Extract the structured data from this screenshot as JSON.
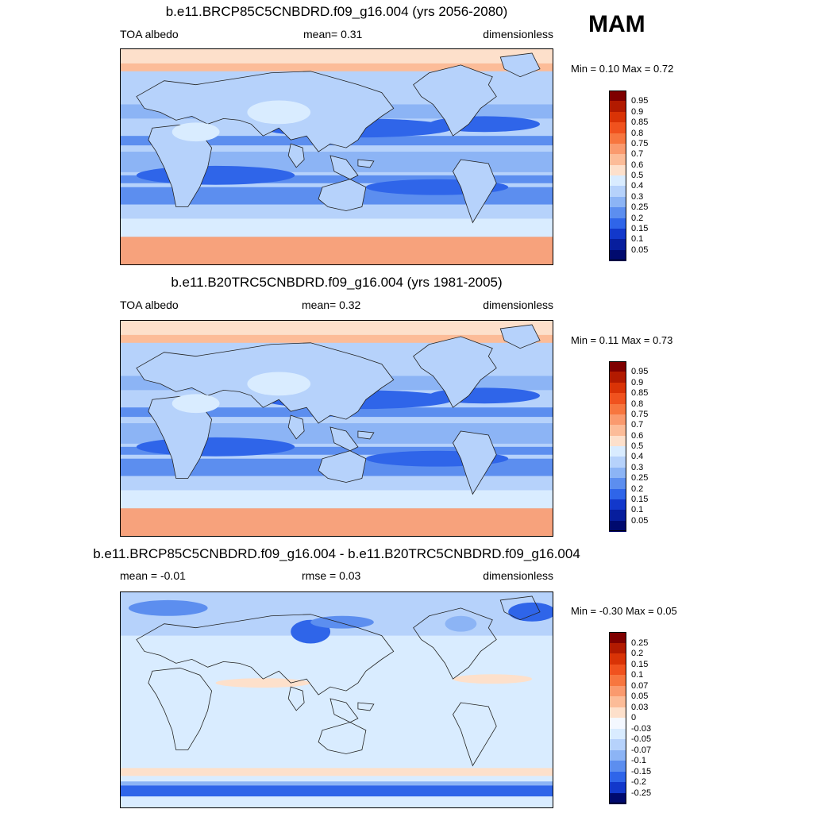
{
  "season": "MAM",
  "panels": [
    {
      "title": "b.e11.BRCP85C5CNBDRD.f09_g16.004 (yrs 2056-2080)",
      "left_label": "TOA albedo",
      "center_label": "mean=   0.31",
      "right_label": "dimensionless",
      "minmax": "Min =   0.10 Max =   0.72",
      "colorbar": {
        "labels": [
          "0.95",
          "0.9",
          "0.85",
          "0.8",
          "0.75",
          "0.7",
          "0.6",
          "0.5",
          "0.4",
          "0.3",
          "0.25",
          "0.2",
          "0.15",
          "0.1",
          "0.05"
        ],
        "colors": [
          "#7f0000",
          "#b21a00",
          "#d93306",
          "#f0521e",
          "#f7763f",
          "#fa9a6e",
          "#fcbc98",
          "#fde0cb",
          "#d9ecff",
          "#b6d2fb",
          "#8cb4f5",
          "#5c8eef",
          "#2f65e9",
          "#1238cb",
          "#071e9d",
          "#000a6e"
        ]
      },
      "style": "high"
    },
    {
      "title": "b.e11.B20TRC5CNBDRD.f09_g16.004 (yrs 1981-2005)",
      "left_label": "TOA albedo",
      "center_label": "mean=   0.32",
      "right_label": "dimensionless",
      "minmax": "Min =   0.11 Max =   0.73",
      "colorbar": {
        "labels": [
          "0.95",
          "0.9",
          "0.85",
          "0.8",
          "0.75",
          "0.7",
          "0.6",
          "0.5",
          "0.4",
          "0.3",
          "0.25",
          "0.2",
          "0.15",
          "0.1",
          "0.05"
        ],
        "colors": [
          "#7f0000",
          "#b21a00",
          "#d93306",
          "#f0521e",
          "#f7763f",
          "#fa9a6e",
          "#fcbc98",
          "#fde0cb",
          "#d9ecff",
          "#b6d2fb",
          "#8cb4f5",
          "#5c8eef",
          "#2f65e9",
          "#1238cb",
          "#071e9d",
          "#000a6e"
        ]
      },
      "style": "high"
    },
    {
      "title": "b.e11.BRCP85C5CNBDRD.f09_g16.004 - b.e11.B20TRC5CNBDRD.f09_g16.004",
      "left_label": "mean =  -0.01",
      "center_label": "rmse =   0.03",
      "right_label": "dimensionless",
      "minmax": "Min =  -0.30 Max =   0.05",
      "colorbar": {
        "labels": [
          "0.25",
          "0.2",
          "0.15",
          "0.1",
          "0.07",
          "0.05",
          "0.03",
          "0",
          "-0.03",
          "-0.05",
          "-0.07",
          "-0.1",
          "-0.15",
          "-0.2",
          "-0.25"
        ],
        "colors": [
          "#7f0000",
          "#b21a00",
          "#d93306",
          "#f0521e",
          "#f7763f",
          "#fa9a6e",
          "#fcbc98",
          "#fde0cb",
          "#f4f8ff",
          "#d9ecff",
          "#b6d2fb",
          "#8cb4f5",
          "#5c8eef",
          "#2f65e9",
          "#1238cb",
          "#000a6e"
        ]
      },
      "style": "diff"
    }
  ]
}
